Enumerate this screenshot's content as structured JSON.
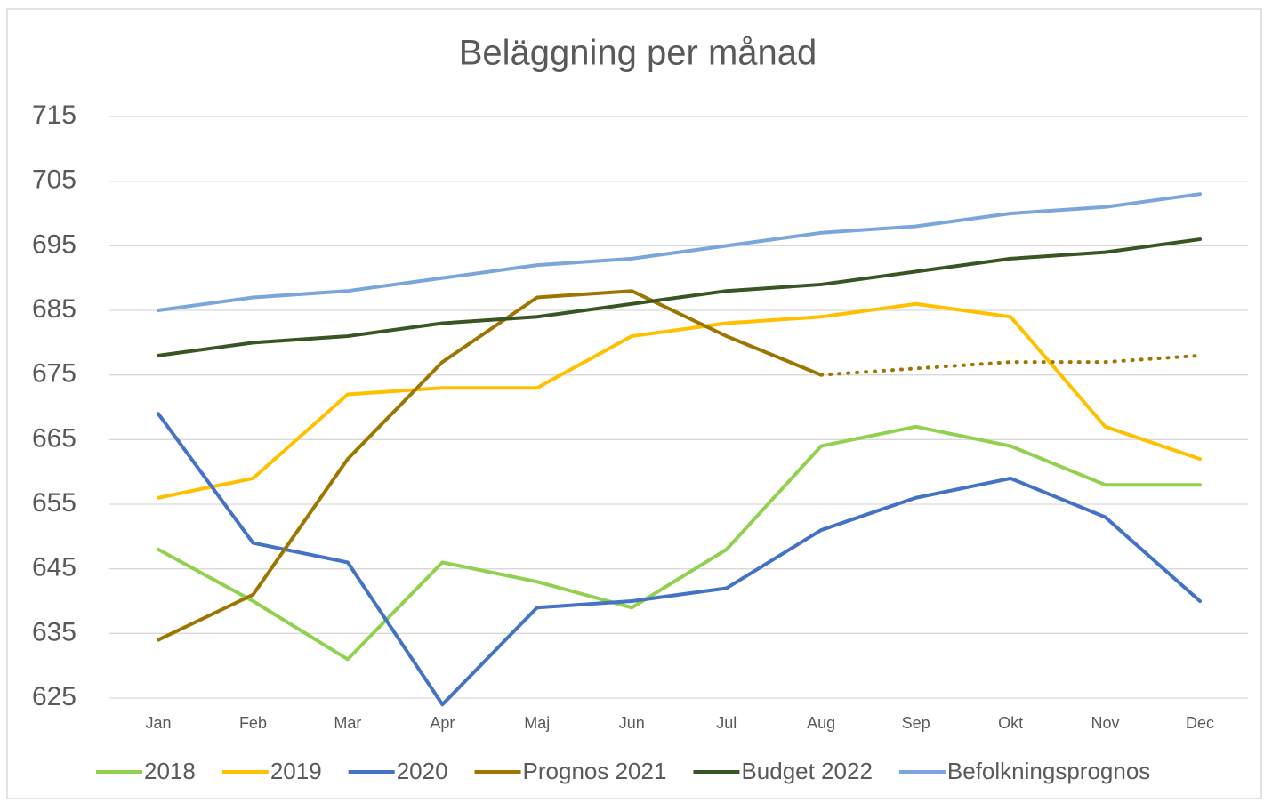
{
  "chart_data": {
    "type": "line",
    "title": "Beläggning per månad",
    "categories": [
      "Jan",
      "Feb",
      "Mar",
      "Apr",
      "Maj",
      "Jun",
      "Jul",
      "Aug",
      "Sep",
      "Okt",
      "Nov",
      "Dec"
    ],
    "ylim": [
      625,
      715
    ],
    "yticks": [
      625,
      635,
      645,
      655,
      665,
      675,
      685,
      695,
      705,
      715
    ],
    "grid": true,
    "legend": "bottom",
    "series": [
      {
        "name": "2018",
        "color": "#92d050",
        "values": [
          648,
          640,
          631,
          646,
          643,
          639,
          648,
          664,
          667,
          664,
          658,
          658
        ]
      },
      {
        "name": "2019",
        "color": "#ffc000",
        "values": [
          656,
          659,
          672,
          673,
          673,
          681,
          683,
          684,
          686,
          684,
          667,
          662
        ]
      },
      {
        "name": "2020",
        "color": "#4472c4",
        "values": [
          669,
          649,
          646,
          624,
          639,
          640,
          642,
          651,
          656,
          659,
          653,
          640
        ]
      },
      {
        "name": "Prognos 2021",
        "color": "#9c7600",
        "values": [
          634,
          641,
          662,
          677,
          687,
          688,
          681,
          675,
          676,
          677,
          677,
          678
        ],
        "dotted_from": 7
      },
      {
        "name": "Budget 2022",
        "color": "#375623",
        "values": [
          678,
          680,
          681,
          683,
          684,
          686,
          688,
          689,
          691,
          693,
          694,
          696
        ]
      },
      {
        "name": "Befolkningsprognos",
        "color": "#7aa6dc",
        "values": [
          685,
          687,
          688,
          690,
          692,
          693,
          695,
          697,
          698,
          700,
          701,
          703
        ]
      }
    ]
  }
}
